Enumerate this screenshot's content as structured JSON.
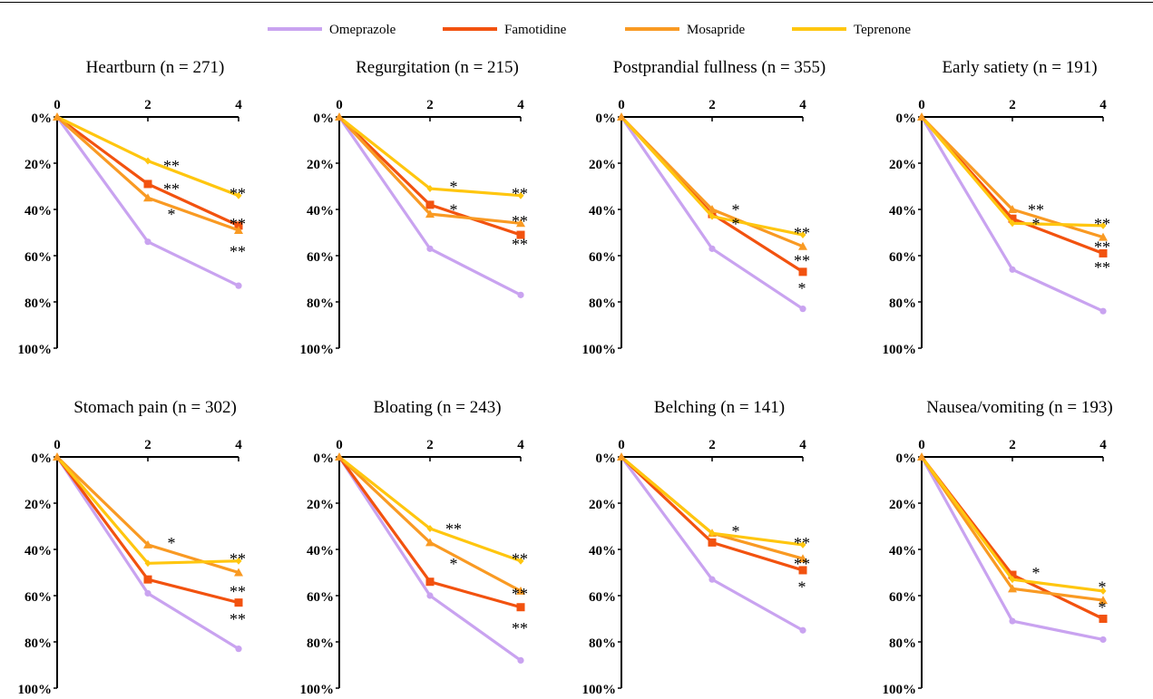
{
  "chart_data": {
    "type": "line",
    "x": [
      0,
      2,
      4
    ],
    "xticks": [
      "0",
      "2",
      "4"
    ],
    "yticks": [
      "0%",
      "20%",
      "40%",
      "60%",
      "80%",
      "100%"
    ],
    "ylim": [
      0,
      100
    ],
    "y_inverted": true,
    "legend_position": "top",
    "series_styles": [
      {
        "name": "Omeprazole",
        "color": "#c9a3f0",
        "marker": "circle"
      },
      {
        "name": "Famotidine",
        "color": "#f2520f",
        "marker": "square"
      },
      {
        "name": "Mosapride",
        "color": "#f99a23",
        "marker": "triangle"
      },
      {
        "name": "Teprenone",
        "color": "#ffc60f",
        "marker": "diamond"
      }
    ],
    "panels": [
      {
        "title": "Heartburn (n = 271)",
        "series": [
          {
            "name": "Omeprazole",
            "values": [
              0,
              54,
              73
            ]
          },
          {
            "name": "Famotidine",
            "values": [
              0,
              29,
              47
            ]
          },
          {
            "name": "Mosapride",
            "values": [
              0,
              35,
              49
            ]
          },
          {
            "name": "Teprenone",
            "values": [
              0,
              19,
              34
            ]
          }
        ],
        "annotations": [
          {
            "x": 2,
            "y": 20,
            "text": "**"
          },
          {
            "x": 2,
            "y": 30,
            "text": "**"
          },
          {
            "x": 2,
            "y": 41,
            "text": "*"
          },
          {
            "x": 4,
            "y": 32,
            "text": "**"
          },
          {
            "x": 4,
            "y": 45,
            "text": "**"
          },
          {
            "x": 4,
            "y": 57,
            "text": "**"
          }
        ]
      },
      {
        "title": "Regurgitation (n = 215)",
        "series": [
          {
            "name": "Omeprazole",
            "values": [
              0,
              57,
              77
            ]
          },
          {
            "name": "Famotidine",
            "values": [
              0,
              38,
              51
            ]
          },
          {
            "name": "Mosapride",
            "values": [
              0,
              42,
              46
            ]
          },
          {
            "name": "Teprenone",
            "values": [
              0,
              31,
              34
            ]
          }
        ],
        "annotations": [
          {
            "x": 2,
            "y": 29,
            "text": "*"
          },
          {
            "x": 2,
            "y": 39,
            "text": "*"
          },
          {
            "x": 4,
            "y": 32,
            "text": "**"
          },
          {
            "x": 4,
            "y": 44,
            "text": "**"
          },
          {
            "x": 4,
            "y": 54,
            "text": "**"
          }
        ]
      },
      {
        "title": "Postprandial fullness (n = 355)",
        "series": [
          {
            "name": "Omeprazole",
            "values": [
              0,
              57,
              83
            ]
          },
          {
            "name": "Famotidine",
            "values": [
              0,
              42,
              67
            ]
          },
          {
            "name": "Mosapride",
            "values": [
              0,
              40,
              56
            ]
          },
          {
            "name": "Teprenone",
            "values": [
              0,
              43,
              51
            ]
          }
        ],
        "annotations": [
          {
            "x": 2,
            "y": 39,
            "text": "*"
          },
          {
            "x": 2,
            "y": 45,
            "text": "*"
          },
          {
            "x": 4,
            "y": 49,
            "text": "**"
          },
          {
            "x": 4,
            "y": 61,
            "text": "**"
          },
          {
            "x": 4,
            "y": 73,
            "text": "*"
          }
        ]
      },
      {
        "title": "Early satiety (n = 191)",
        "series": [
          {
            "name": "Omeprazole",
            "values": [
              0,
              66,
              84
            ]
          },
          {
            "name": "Famotidine",
            "values": [
              0,
              44,
              59
            ]
          },
          {
            "name": "Mosapride",
            "values": [
              0,
              40,
              52
            ]
          },
          {
            "name": "Teprenone",
            "values": [
              0,
              46,
              47
            ]
          }
        ],
        "annotations": [
          {
            "x": 2,
            "y": 39,
            "text": "**"
          },
          {
            "x": 2,
            "y": 45,
            "text": "*"
          },
          {
            "x": 4,
            "y": 45,
            "text": "**"
          },
          {
            "x": 4,
            "y": 55,
            "text": "**"
          },
          {
            "x": 4,
            "y": 64,
            "text": "**"
          }
        ]
      },
      {
        "title": "Stomach pain (n = 302)",
        "series": [
          {
            "name": "Omeprazole",
            "values": [
              0,
              59,
              83
            ]
          },
          {
            "name": "Famotidine",
            "values": [
              0,
              53,
              63
            ]
          },
          {
            "name": "Mosapride",
            "values": [
              0,
              38,
              50
            ]
          },
          {
            "name": "Teprenone",
            "values": [
              0,
              46,
              45
            ]
          }
        ],
        "annotations": [
          {
            "x": 2,
            "y": 36,
            "text": "*"
          },
          {
            "x": 4,
            "y": 43,
            "text": "**"
          },
          {
            "x": 4,
            "y": 57,
            "text": "**"
          },
          {
            "x": 4,
            "y": 69,
            "text": "**"
          }
        ]
      },
      {
        "title": "Bloating (n = 243)",
        "series": [
          {
            "name": "Omeprazole",
            "values": [
              0,
              60,
              88
            ]
          },
          {
            "name": "Famotidine",
            "values": [
              0,
              54,
              65
            ]
          },
          {
            "name": "Mosapride",
            "values": [
              0,
              37,
              58
            ]
          },
          {
            "name": "Teprenone",
            "values": [
              0,
              31,
              45
            ]
          }
        ],
        "annotations": [
          {
            "x": 2,
            "y": 30,
            "text": "**"
          },
          {
            "x": 2,
            "y": 45,
            "text": "*"
          },
          {
            "x": 4,
            "y": 43,
            "text": "**"
          },
          {
            "x": 4,
            "y": 58,
            "text": "**"
          },
          {
            "x": 4,
            "y": 73,
            "text": "**"
          }
        ]
      },
      {
        "title": "Belching (n = 141)",
        "series": [
          {
            "name": "Omeprazole",
            "values": [
              0,
              53,
              75
            ]
          },
          {
            "name": "Famotidine",
            "values": [
              0,
              37,
              49
            ]
          },
          {
            "name": "Mosapride",
            "values": [
              0,
              33,
              44
            ]
          },
          {
            "name": "Teprenone",
            "values": [
              0,
              33,
              38
            ]
          }
        ],
        "annotations": [
          {
            "x": 2,
            "y": 31,
            "text": "*"
          },
          {
            "x": 4,
            "y": 36,
            "text": "**"
          },
          {
            "x": 4,
            "y": 45,
            "text": "**"
          },
          {
            "x": 4,
            "y": 55,
            "text": "*"
          }
        ]
      },
      {
        "title": "Nausea/vomiting (n = 193)",
        "series": [
          {
            "name": "Omeprazole",
            "values": [
              0,
              71,
              79
            ]
          },
          {
            "name": "Famotidine",
            "values": [
              0,
              51,
              70
            ]
          },
          {
            "name": "Mosapride",
            "values": [
              0,
              57,
              62
            ]
          },
          {
            "name": "Teprenone",
            "values": [
              0,
              53,
              58
            ]
          }
        ],
        "annotations": [
          {
            "x": 2,
            "y": 49,
            "text": "*"
          },
          {
            "x": 4,
            "y": 55,
            "text": "*"
          },
          {
            "x": 4,
            "y": 64,
            "text": "*"
          }
        ]
      }
    ]
  }
}
